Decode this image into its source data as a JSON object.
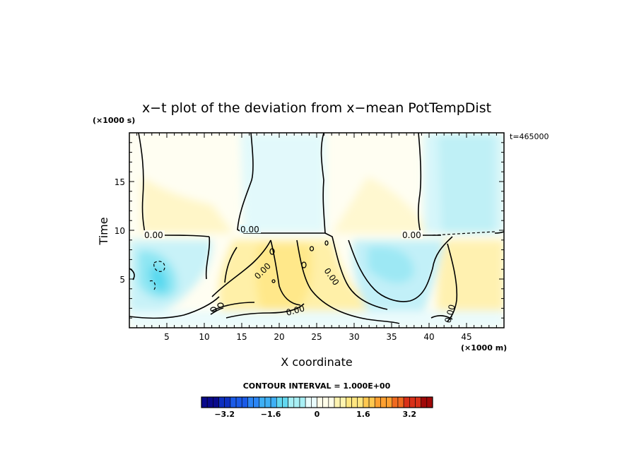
{
  "chart_data": {
    "type": "heatmap",
    "title": "x−t plot of the deviation from x−mean PotTempDist",
    "xlabel": "X coordinate",
    "ylabel": "Time",
    "x_unit": "(×1000 m)",
    "y_unit": "(×1000 s)",
    "time_stamp": "t=465000",
    "xlim": [
      0,
      50
    ],
    "ylim": [
      0,
      20
    ],
    "x_ticks": [
      "5",
      "10",
      "15",
      "20",
      "25",
      "30",
      "35",
      "40",
      "45"
    ],
    "y_ticks": [
      "5",
      "10",
      "15"
    ],
    "contour_interval_label": "CONTOUR INTERVAL = 1.000E+00",
    "contour_labels": [
      "0.00",
      "0.00",
      "0.00",
      "0.00",
      "0.00",
      "0.00",
      "0.00"
    ],
    "colorbar": {
      "range": [
        -4,
        4
      ],
      "ticks": [
        "-3.2",
        "-1.6",
        "0",
        "1.6",
        "3.2"
      ],
      "colors": [
        "#0a0a8c",
        "#0d2fc0",
        "#1a5ae8",
        "#2c86f5",
        "#3fb0f5",
        "#63d8f0",
        "#a8f0f5",
        "#e8fcfc",
        "#fffde8",
        "#fff4b0",
        "#ffe680",
        "#ffc850",
        "#ffa030",
        "#f06a20",
        "#d83018",
        "#a00808"
      ]
    }
  }
}
